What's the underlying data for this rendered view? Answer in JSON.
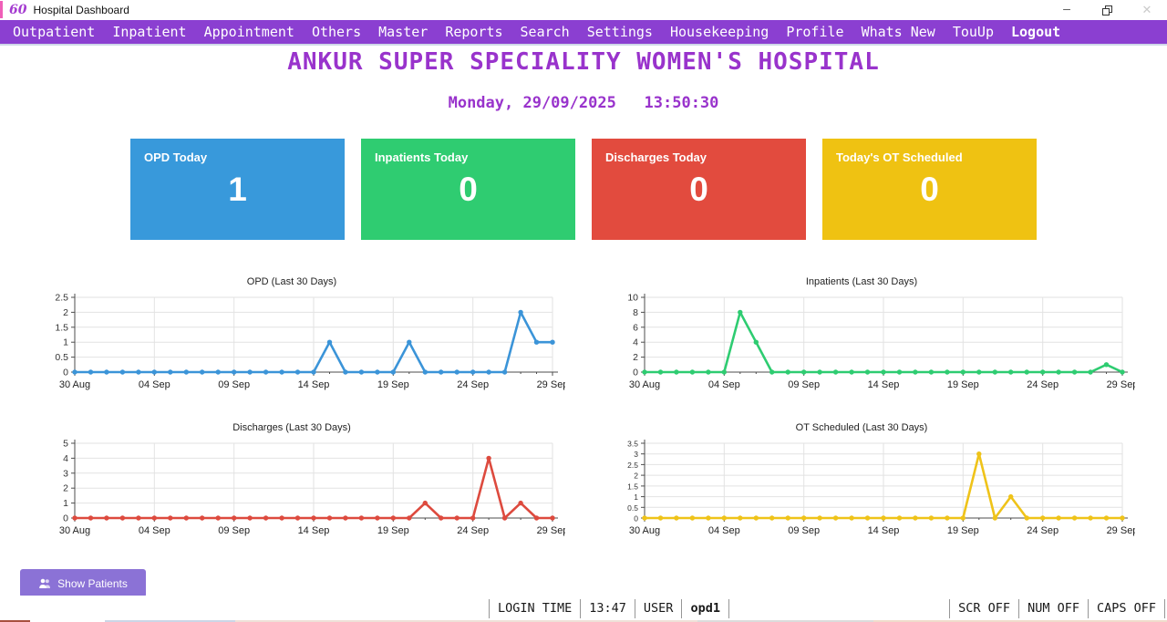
{
  "window": {
    "logo_glyph": "60",
    "title": "Hospital Dashboard"
  },
  "colors": {
    "menubar": "#8B3FD1",
    "heading": "#9933CC",
    "card_blue": "#3899DB",
    "card_green": "#2FCC71",
    "card_red": "#E24B3E",
    "card_yellow": "#EFC212",
    "show_patients_button": "#8B72D6"
  },
  "menu": {
    "items": [
      {
        "label": "Outpatient"
      },
      {
        "label": "Inpatient"
      },
      {
        "label": "Appointment"
      },
      {
        "label": "Others"
      },
      {
        "label": "Master"
      },
      {
        "label": "Reports"
      },
      {
        "label": "Search"
      },
      {
        "label": "Settings"
      },
      {
        "label": "Housekeeping"
      },
      {
        "label": "Profile"
      },
      {
        "label": "Whats New"
      },
      {
        "label": "TouUp"
      },
      {
        "label": "Logout",
        "bold": true
      }
    ]
  },
  "header": {
    "hospital_name": "ANKUR SUPER SPECIALITY WOMEN'S HOSPITAL",
    "datetime": "Monday, 29/09/2025   13:50:30"
  },
  "cards": [
    {
      "label": "OPD Today",
      "value": "1",
      "color": "#3899DB"
    },
    {
      "label": "Inpatients Today",
      "value": "0",
      "color": "#2FCC71"
    },
    {
      "label": "Discharges Today",
      "value": "0",
      "color": "#E24B3E"
    },
    {
      "label": "Today's OT Scheduled",
      "value": "0",
      "color": "#EFC212"
    }
  ],
  "chart_data": [
    {
      "type": "line",
      "title": "OPD (Last 30 Days)",
      "color": "#3B94D8",
      "ylim": [
        0,
        2.5
      ],
      "yticks": [
        0,
        0.5,
        1,
        1.5,
        2,
        2.5
      ],
      "x_tick_labels": [
        "30 Aug",
        "04 Sep",
        "09 Sep",
        "14 Sep",
        "19 Sep",
        "24 Sep",
        "29 Sep"
      ],
      "x": [
        "30 Aug",
        "31 Aug",
        "01 Sep",
        "02 Sep",
        "03 Sep",
        "04 Sep",
        "05 Sep",
        "06 Sep",
        "07 Sep",
        "08 Sep",
        "09 Sep",
        "10 Sep",
        "11 Sep",
        "12 Sep",
        "13 Sep",
        "14 Sep",
        "15 Sep",
        "16 Sep",
        "17 Sep",
        "18 Sep",
        "19 Sep",
        "20 Sep",
        "21 Sep",
        "22 Sep",
        "23 Sep",
        "24 Sep",
        "25 Sep",
        "26 Sep",
        "27 Sep",
        "28 Sep",
        "29 Sep"
      ],
      "values": [
        0,
        0,
        0,
        0,
        0,
        0,
        0,
        0,
        0,
        0,
        0,
        0,
        0,
        0,
        0,
        0,
        1,
        0,
        0,
        0,
        0,
        1,
        0,
        0,
        0,
        0,
        0,
        0,
        2,
        1,
        1
      ],
      "grid": true,
      "legend": false
    },
    {
      "type": "line",
      "title": "Inpatients (Last 30 Days)",
      "color": "#2ECC71",
      "ylim": [
        0,
        10
      ],
      "yticks": [
        0,
        2,
        4,
        6,
        8,
        10
      ],
      "x_tick_labels": [
        "30 Aug",
        "04 Sep",
        "09 Sep",
        "14 Sep",
        "19 Sep",
        "24 Sep",
        "29 Sep"
      ],
      "x": [
        "30 Aug",
        "31 Aug",
        "01 Sep",
        "02 Sep",
        "03 Sep",
        "04 Sep",
        "05 Sep",
        "06 Sep",
        "07 Sep",
        "08 Sep",
        "09 Sep",
        "10 Sep",
        "11 Sep",
        "12 Sep",
        "13 Sep",
        "14 Sep",
        "15 Sep",
        "16 Sep",
        "17 Sep",
        "18 Sep",
        "19 Sep",
        "20 Sep",
        "21 Sep",
        "22 Sep",
        "23 Sep",
        "24 Sep",
        "25 Sep",
        "26 Sep",
        "27 Sep",
        "28 Sep",
        "29 Sep"
      ],
      "values": [
        0,
        0,
        0,
        0,
        0,
        0,
        8,
        4,
        0,
        0,
        0,
        0,
        0,
        0,
        0,
        0,
        0,
        0,
        0,
        0,
        0,
        0,
        0,
        0,
        0,
        0,
        0,
        0,
        0,
        1,
        0
      ],
      "grid": true,
      "legend": false
    },
    {
      "type": "line",
      "title": "Discharges (Last 30 Days)",
      "color": "#DD4A3E",
      "ylim": [
        0,
        5
      ],
      "yticks": [
        0,
        1,
        2,
        3,
        4,
        5
      ],
      "x_tick_labels": [
        "30 Aug",
        "04 Sep",
        "09 Sep",
        "14 Sep",
        "19 Sep",
        "24 Sep",
        "29 Sep"
      ],
      "x": [
        "30 Aug",
        "31 Aug",
        "01 Sep",
        "02 Sep",
        "03 Sep",
        "04 Sep",
        "05 Sep",
        "06 Sep",
        "07 Sep",
        "08 Sep",
        "09 Sep",
        "10 Sep",
        "11 Sep",
        "12 Sep",
        "13 Sep",
        "14 Sep",
        "15 Sep",
        "16 Sep",
        "17 Sep",
        "18 Sep",
        "19 Sep",
        "20 Sep",
        "21 Sep",
        "22 Sep",
        "23 Sep",
        "24 Sep",
        "25 Sep",
        "26 Sep",
        "27 Sep",
        "28 Sep",
        "29 Sep"
      ],
      "values": [
        0,
        0,
        0,
        0,
        0,
        0,
        0,
        0,
        0,
        0,
        0,
        0,
        0,
        0,
        0,
        0,
        0,
        0,
        0,
        0,
        0,
        0,
        1,
        0,
        0,
        0,
        4,
        0,
        1,
        0,
        0
      ],
      "grid": true,
      "legend": false
    },
    {
      "type": "line",
      "title": "OT Scheduled (Last 30 Days)",
      "color": "#EFC319",
      "ylim": [
        0,
        3.5
      ],
      "yticks": [
        0,
        0.5,
        1,
        1.5,
        2,
        2.5,
        3,
        3.5
      ],
      "x_tick_labels": [
        "30 Aug",
        "04 Sep",
        "09 Sep",
        "14 Sep",
        "19 Sep",
        "24 Sep",
        "29 Sep"
      ],
      "x": [
        "30 Aug",
        "31 Aug",
        "01 Sep",
        "02 Sep",
        "03 Sep",
        "04 Sep",
        "05 Sep",
        "06 Sep",
        "07 Sep",
        "08 Sep",
        "09 Sep",
        "10 Sep",
        "11 Sep",
        "12 Sep",
        "13 Sep",
        "14 Sep",
        "15 Sep",
        "16 Sep",
        "17 Sep",
        "18 Sep",
        "19 Sep",
        "20 Sep",
        "21 Sep",
        "22 Sep",
        "23 Sep",
        "24 Sep",
        "25 Sep",
        "26 Sep",
        "27 Sep",
        "28 Sep",
        "29 Sep"
      ],
      "values": [
        0,
        0,
        0,
        0,
        0,
        0,
        0,
        0,
        0,
        0,
        0,
        0,
        0,
        0,
        0,
        0,
        0,
        0,
        0,
        0,
        0,
        3,
        0,
        1,
        0,
        0,
        0,
        0,
        0,
        0,
        0
      ],
      "grid": true,
      "legend": false
    }
  ],
  "actions": {
    "show_patients_label": "Show Patients"
  },
  "statusbar": {
    "left": [
      {
        "text": "LOGIN TIME"
      },
      {
        "text": "13:47"
      },
      {
        "text": "USER"
      },
      {
        "text": "opd1",
        "bold": true
      }
    ],
    "right": [
      {
        "text": "SCR OFF"
      },
      {
        "text": "NUM OFF"
      },
      {
        "text": "CAPS OFF"
      }
    ]
  }
}
